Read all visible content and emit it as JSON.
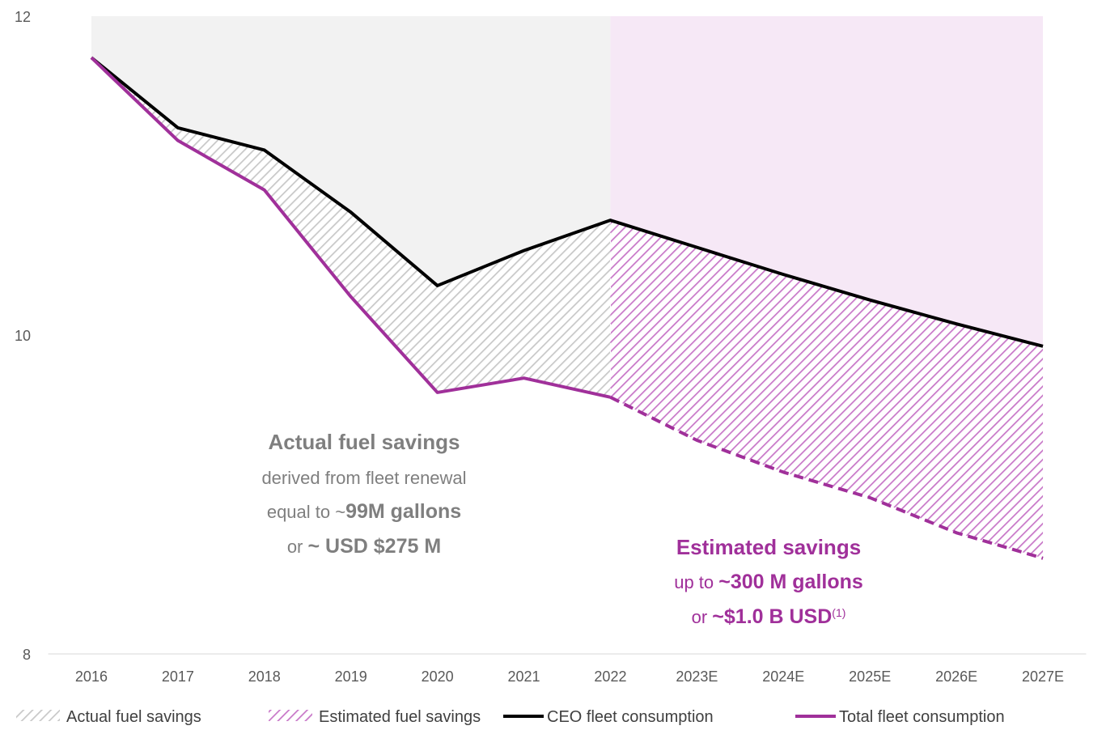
{
  "chart_data": {
    "type": "line",
    "categories": [
      "2016",
      "2017",
      "2018",
      "2019",
      "2020",
      "2021",
      "2022",
      "2023E",
      "2024E",
      "2025E",
      "2026E",
      "2027E"
    ],
    "series": [
      {
        "name": "CEO fleet consumption",
        "color": "#000000",
        "values": [
          11.74,
          11.3,
          11.16,
          10.77,
          10.31,
          10.53,
          10.72,
          10.55,
          10.38,
          10.22,
          10.07,
          9.93
        ]
      },
      {
        "name": "Total fleet consumption",
        "color": "#a0309a",
        "values": [
          11.74,
          11.22,
          10.91,
          10.24,
          9.64,
          9.73,
          9.61,
          9.34,
          9.14,
          8.98,
          8.76,
          8.6
        ]
      }
    ],
    "fills": [
      {
        "name": "Actual fuel savings",
        "color": "#c8c8c8",
        "background": "#f2f2f2"
      },
      {
        "name": "Estimated fuel savings",
        "color": "#c878c8",
        "background": "#f6e8f6"
      }
    ],
    "forecast_start": "2022",
    "ylim": [
      8,
      12
    ],
    "yticks": [
      8,
      10,
      12
    ],
    "annotations": [
      {
        "color": "#7f7f7f",
        "lines": [
          [
            {
              "text": "Actual fuel savings",
              "bold": true
            }
          ],
          [
            {
              "text": "derived from fleet renewal"
            }
          ],
          [
            {
              "text": "equal to ~"
            },
            {
              "text": "99M gallons",
              "bold": true
            }
          ],
          [
            {
              "text": "or "
            },
            {
              "text": "~ USD $275 M",
              "bold": true
            }
          ]
        ]
      },
      {
        "color": "#a0309a",
        "lines": [
          [
            {
              "text": "Estimated savings",
              "bold": true
            }
          ],
          [
            {
              "text": "up to "
            },
            {
              "text": "~300 M gallons",
              "bold": true
            }
          ],
          [
            {
              "text": "or "
            },
            {
              "text": "~$1.0 B USD",
              "bold": true
            },
            {
              "text": "(1)",
              "sup": true
            }
          ]
        ]
      }
    ]
  }
}
